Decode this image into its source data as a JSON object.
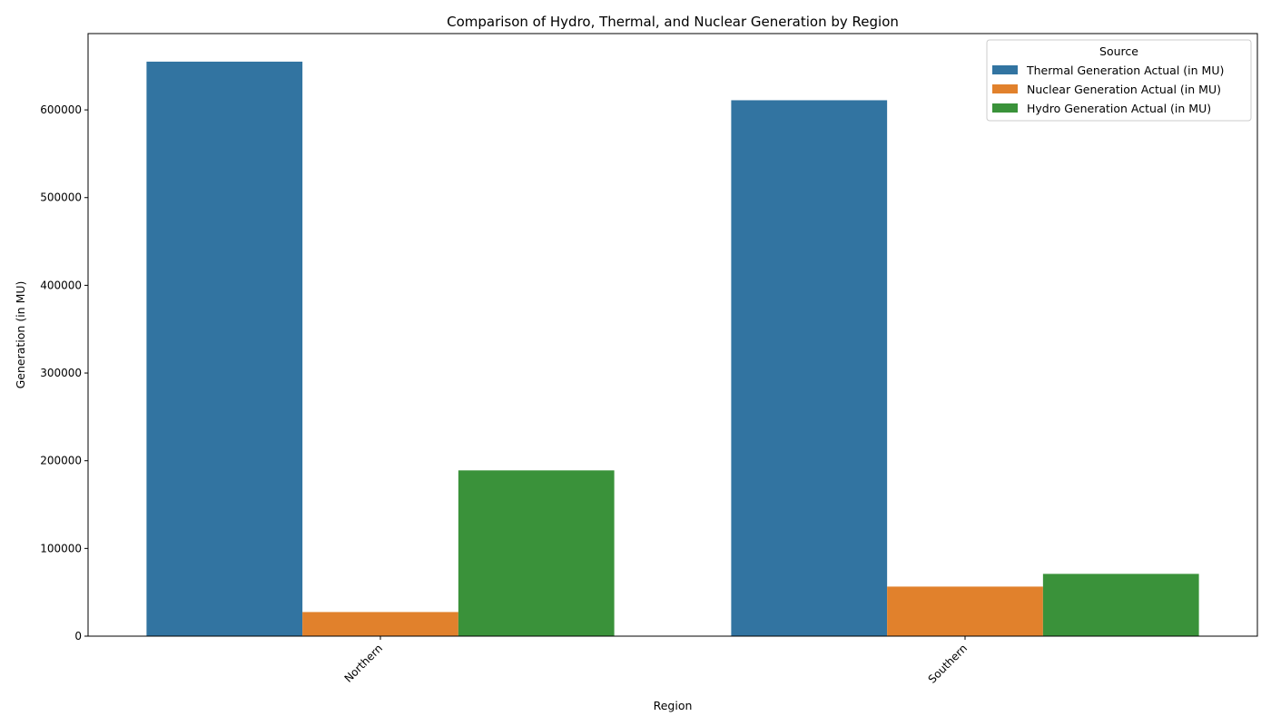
{
  "chart_data": {
    "type": "bar",
    "title": "Comparison of Hydro, Thermal, and Nuclear Generation by Region",
    "xlabel": "Region",
    "ylabel": "Generation (in MU)",
    "categories": [
      "Northern",
      "Southern"
    ],
    "series": [
      {
        "name": "Thermal Generation Actual (in MU)",
        "color": "#3274a1",
        "values": [
          655000,
          611000
        ]
      },
      {
        "name": "Nuclear Generation Actual (in MU)",
        "color": "#e1812c",
        "values": [
          27500,
          56500
        ]
      },
      {
        "name": "Hydro Generation Actual (in MU)",
        "color": "#3a923a",
        "values": [
          189000,
          71000
        ]
      }
    ],
    "ylim": [
      0,
      687000
    ],
    "yticks": [
      0,
      100000,
      200000,
      300000,
      400000,
      500000,
      600000
    ],
    "legend": {
      "title": "Source",
      "position": "top-right"
    },
    "grid": false
  }
}
